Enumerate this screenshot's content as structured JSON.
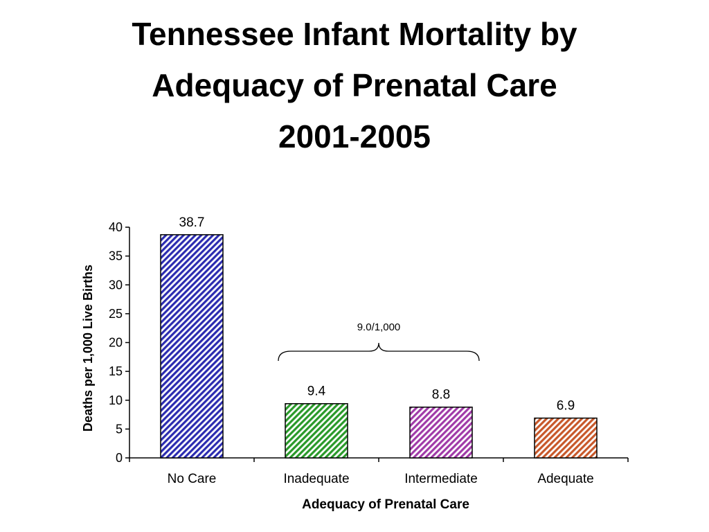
{
  "slide": {
    "title_lines": [
      "Tennessee Infant Mortality by",
      "Adequacy of Prenatal Care",
      "2001-2005"
    ]
  },
  "chart_data": {
    "type": "bar",
    "categories": [
      "No Care",
      "Inadequate",
      "Intermediate",
      "Adequate"
    ],
    "values": [
      38.7,
      9.4,
      8.8,
      6.9
    ],
    "data_labels": [
      "38.7",
      "9.4",
      "8.8",
      "6.9"
    ],
    "colors": [
      "#2b2bb0",
      "#2a9a2a",
      "#a03aa8",
      "#c8582a"
    ],
    "fill_pattern": "diagonal-hatch",
    "xlabel": "Adequacy of Prenatal Care",
    "ylabel": "Deaths per 1,000 Live Births",
    "ylim": [
      0,
      40
    ],
    "yticks": [
      0,
      5,
      10,
      15,
      20,
      25,
      30,
      35,
      40
    ],
    "grid": false,
    "annotation": {
      "text": "9.0/1,000",
      "spans": [
        "Inadequate",
        "Intermediate"
      ],
      "shape": "curly-brace"
    }
  }
}
